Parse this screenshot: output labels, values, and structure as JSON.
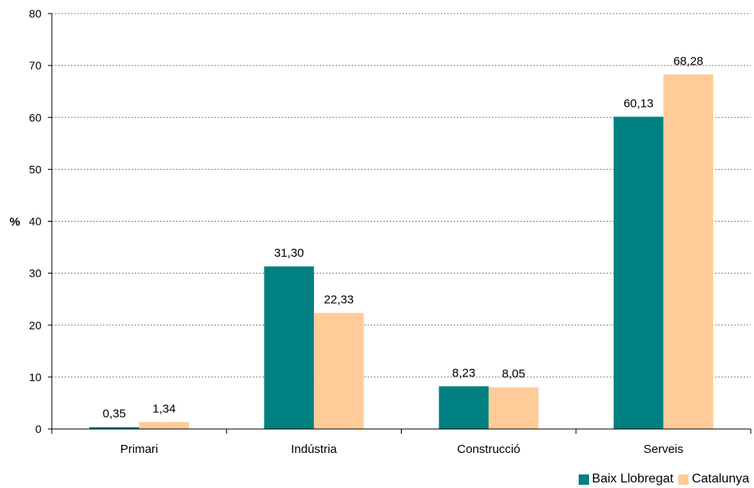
{
  "chart_data": {
    "type": "bar",
    "categories": [
      "Primari",
      "Indústria",
      "Construcció",
      "Serveis"
    ],
    "series": [
      {
        "name": "Baix Llobregat",
        "values": [
          0.35,
          31.3,
          8.23,
          60.13
        ],
        "labels": [
          "0,35",
          "31,30",
          "8,23",
          "60,13"
        ],
        "color": "#008080"
      },
      {
        "name": "Catalunya",
        "values": [
          1.34,
          22.33,
          8.05,
          68.28
        ],
        "labels": [
          "1,34",
          "22,33",
          "8,05",
          "68,28"
        ],
        "color": "#FFCC99"
      }
    ],
    "ylabel": "%",
    "ylim": [
      0,
      80
    ],
    "yticks": [
      "0",
      "10",
      "20",
      "30",
      "40",
      "50",
      "60",
      "70",
      "80"
    ],
    "grid": true,
    "legend_position": "bottom-right"
  }
}
